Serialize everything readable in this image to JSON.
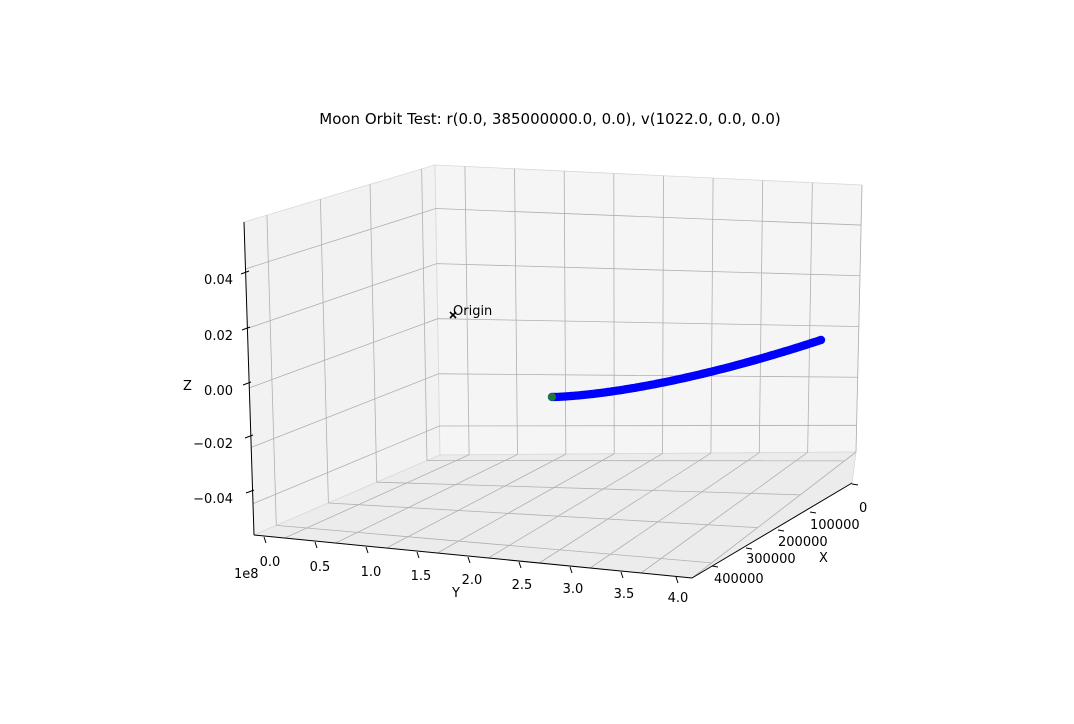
{
  "chart_data": {
    "type": "scatter",
    "title": "Moon Orbit Test: r(0.0, 385000000.0, 0.0), v(1022.0, 0.0, 0.0)",
    "xlabel": "X",
    "ylabel": "Y",
    "zlabel": "Z",
    "x_ticks": [
      "0",
      "100000",
      "200000",
      "300000",
      "400000"
    ],
    "y_ticks": [
      "0.0",
      "0.5",
      "1.0",
      "1.5",
      "2.0",
      "2.5",
      "3.0",
      "3.5",
      "4.0"
    ],
    "y_offset_label": "1e8",
    "z_ticks": [
      "0.04",
      "0.02",
      "0.00",
      "−0.02",
      "−0.04"
    ],
    "annotation": "Origin",
    "origin_marker": "x",
    "grid": true,
    "series": [
      {
        "color": "#0000ff",
        "start_marker_color": "#1f7a3a",
        "points": [
          {
            "x": 0,
            "y": 385000000,
            "z": 0
          },
          {
            "x": 50000,
            "y": 384996000,
            "z": 0
          },
          {
            "x": 100000,
            "y": 384987000,
            "z": 0
          },
          {
            "x": 150000,
            "y": 384971000,
            "z": 0
          },
          {
            "x": 200000,
            "y": 384948000,
            "z": 0
          },
          {
            "x": 250000,
            "y": 384919000,
            "z": 0
          },
          {
            "x": 300000,
            "y": 384883000,
            "z": 0
          },
          {
            "x": 350000,
            "y": 384841000,
            "z": 0
          },
          {
            "x": 400000,
            "y": 384792000,
            "z": 0
          },
          {
            "x": 460000,
            "y": 384725000,
            "z": 0
          }
        ]
      }
    ]
  }
}
